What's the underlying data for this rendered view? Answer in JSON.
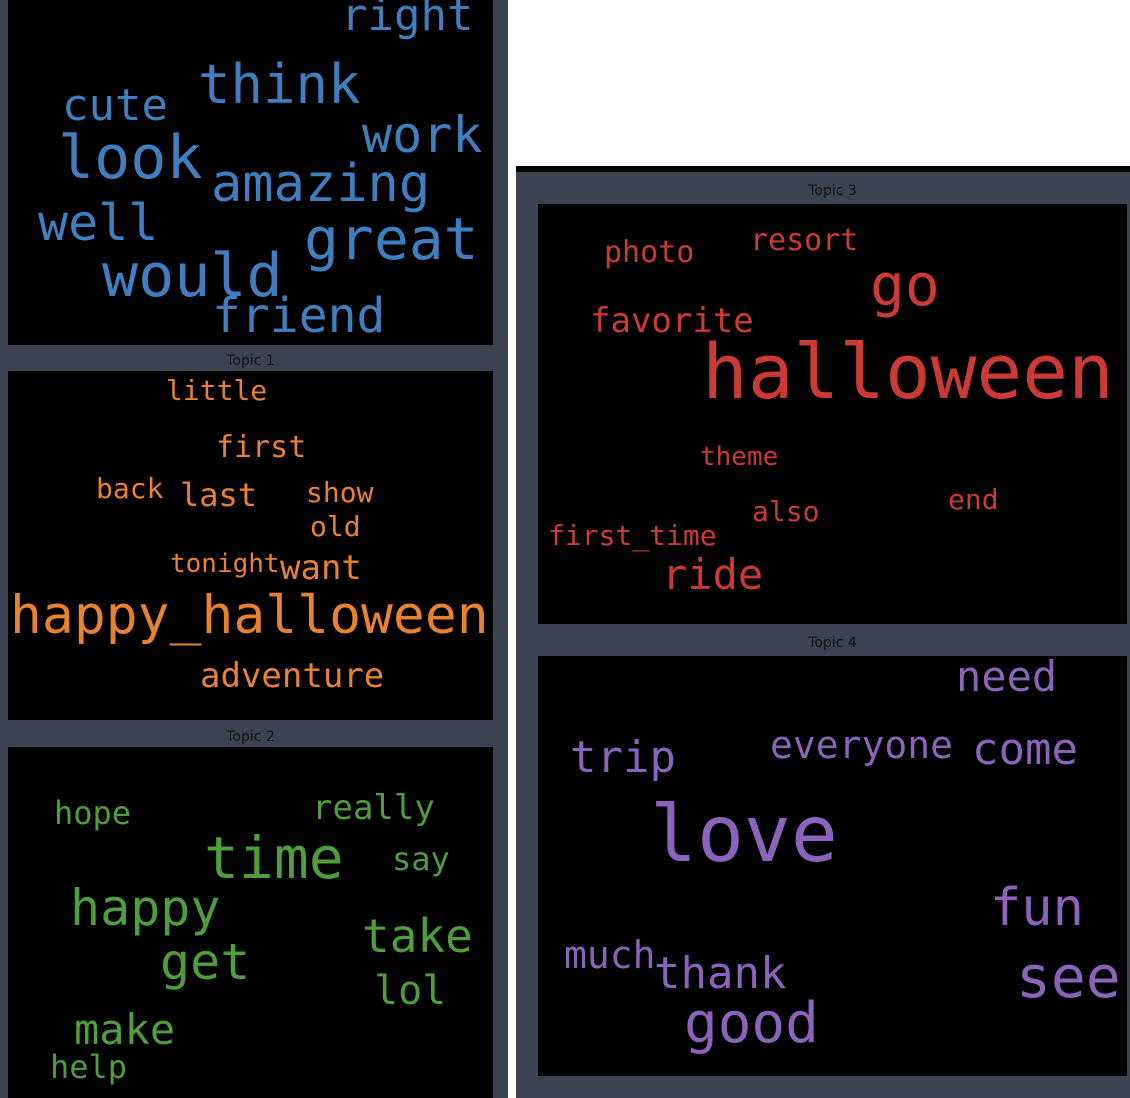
{
  "colors": {
    "panel": "#3b4252",
    "cloud_background": "#000000",
    "topic0": "#3f7fbf",
    "topic1": "#e8822e",
    "topic2": "#4e9e3a",
    "topic3": "#cc3a35",
    "topic4": "#8c63bb"
  },
  "topics": [
    {
      "title": "",
      "words": [
        "right",
        "think",
        "cute",
        "work",
        "look",
        "amazing",
        "well",
        "great",
        "would",
        "friend"
      ]
    },
    {
      "title": "Topic 1",
      "words": [
        "little",
        "first",
        "back",
        "last",
        "show",
        "old",
        "tonight",
        "want",
        "happy_halloween",
        "adventure"
      ]
    },
    {
      "title": "Topic 2",
      "words": [
        "hope",
        "really",
        "time",
        "say",
        "happy",
        "take",
        "get",
        "lol",
        "make",
        "help"
      ]
    },
    {
      "title": "Topic 3",
      "words": [
        "photo",
        "resort",
        "go",
        "favorite",
        "halloween",
        "theme",
        "end",
        "also",
        "first_time",
        "ride"
      ]
    },
    {
      "title": "Topic 4",
      "words": [
        "need",
        "trip",
        "everyone",
        "come",
        "love",
        "fun",
        "much",
        "thank",
        "see",
        "good"
      ]
    }
  ]
}
